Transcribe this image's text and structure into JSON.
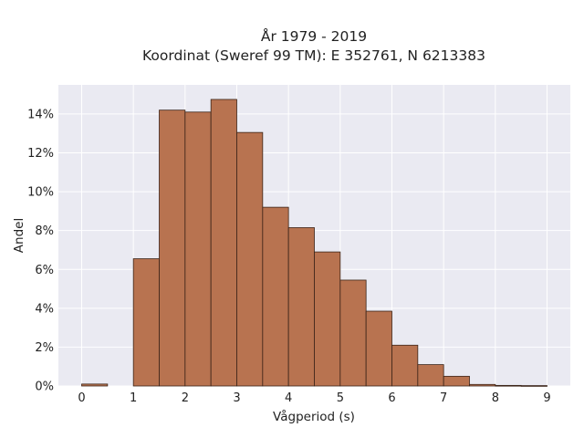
{
  "chart_data": {
    "type": "bar",
    "title_line1": "År 1979 - 2019",
    "title_line2": "Koordinat (Sweref 99 TM): E 352761, N 6213383",
    "xlabel": "Vågperiod (s)",
    "ylabel": "Andel",
    "x_ticks": [
      "0",
      "1",
      "2",
      "3",
      "4",
      "5",
      "6",
      "7",
      "8",
      "9"
    ],
    "y_ticks": [
      "0%",
      "2%",
      "4%",
      "6%",
      "8%",
      "10%",
      "12%",
      "14%"
    ],
    "xlim": [
      -0.45,
      9.45
    ],
    "ylim": [
      0,
      15.5
    ],
    "bin_width": 0.5,
    "bins": [
      {
        "start": 0.0,
        "value": 0.1
      },
      {
        "start": 0.5,
        "value": 0.0
      },
      {
        "start": 1.0,
        "value": 6.55
      },
      {
        "start": 1.5,
        "value": 14.2
      },
      {
        "start": 2.0,
        "value": 14.1
      },
      {
        "start": 2.5,
        "value": 14.75
      },
      {
        "start": 3.0,
        "value": 13.05
      },
      {
        "start": 3.5,
        "value": 9.2
      },
      {
        "start": 4.0,
        "value": 8.15
      },
      {
        "start": 4.5,
        "value": 6.9
      },
      {
        "start": 5.0,
        "value": 5.45
      },
      {
        "start": 5.5,
        "value": 3.85
      },
      {
        "start": 6.0,
        "value": 2.1
      },
      {
        "start": 6.5,
        "value": 1.1
      },
      {
        "start": 7.0,
        "value": 0.5
      },
      {
        "start": 7.5,
        "value": 0.08
      },
      {
        "start": 8.0,
        "value": 0.03
      },
      {
        "start": 8.5,
        "value": 0.02
      }
    ],
    "bar_color": "#b87350",
    "bar_edge_color": "#3b2418",
    "plot_background": "#eaeaf2",
    "grid": true
  }
}
